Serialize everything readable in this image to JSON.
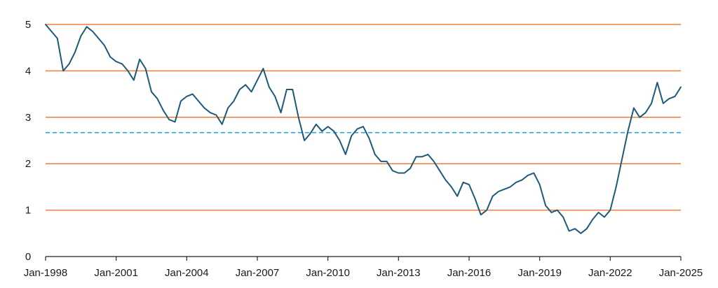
{
  "chart_data": {
    "type": "line",
    "title": "",
    "xlabel": "",
    "ylabel": "",
    "ylim": [
      0,
      5
    ],
    "xlim": [
      "1998-01",
      "2025-01"
    ],
    "grid": true,
    "colors": {
      "line": "#1d5a7a",
      "gridline": "#f07c3a",
      "reference": "#2aa7df",
      "axis": "#222222"
    },
    "y_ticks": [
      "0",
      "1",
      "2",
      "3",
      "4",
      "5"
    ],
    "x_ticks": [
      "Jan-1998",
      "Jan-2001",
      "Jan-2004",
      "Jan-2007",
      "Jan-2010",
      "Jan-2013",
      "Jan-2016",
      "Jan-2019",
      "Jan-2022",
      "Jan-2025"
    ],
    "reference_line": {
      "value": 2.67,
      "style": "dashed"
    },
    "series": [
      {
        "x": [
          "1998-01",
          "1998-04",
          "1998-07",
          "1998-10",
          "1999-01",
          "1999-04",
          "1999-07",
          "1999-10",
          "2000-01",
          "2000-04",
          "2000-07",
          "2000-10",
          "2001-01",
          "2001-04",
          "2001-07",
          "2001-10",
          "2002-01",
          "2002-04",
          "2002-07",
          "2002-10",
          "2003-01",
          "2003-04",
          "2003-07",
          "2003-10",
          "2004-01",
          "2004-04",
          "2004-07",
          "2004-10",
          "2005-01",
          "2005-04",
          "2005-07",
          "2005-10",
          "2006-01",
          "2006-04",
          "2006-07",
          "2006-10",
          "2007-01",
          "2007-04",
          "2007-07",
          "2007-10",
          "2008-01",
          "2008-04",
          "2008-07",
          "2008-10",
          "2009-01",
          "2009-04",
          "2009-07",
          "2009-10",
          "2010-01",
          "2010-04",
          "2010-07",
          "2010-10",
          "2011-01",
          "2011-04",
          "2011-07",
          "2011-10",
          "2012-01",
          "2012-04",
          "2012-07",
          "2012-10",
          "2013-01",
          "2013-04",
          "2013-07",
          "2013-10",
          "2014-01",
          "2014-04",
          "2014-07",
          "2014-10",
          "2015-01",
          "2015-04",
          "2015-07",
          "2015-10",
          "2016-01",
          "2016-04",
          "2016-07",
          "2016-10",
          "2017-01",
          "2017-04",
          "2017-07",
          "2017-10",
          "2018-01",
          "2018-04",
          "2018-07",
          "2018-10",
          "2019-01",
          "2019-04",
          "2019-07",
          "2019-10",
          "2020-01",
          "2020-04",
          "2020-07",
          "2020-10",
          "2021-01",
          "2021-04",
          "2021-07",
          "2021-10",
          "2022-01",
          "2022-04",
          "2022-07",
          "2022-10",
          "2023-01",
          "2023-04",
          "2023-07",
          "2023-10",
          "2024-01",
          "2024-04",
          "2024-07",
          "2024-10",
          "2025-01"
        ],
        "values": [
          5.0,
          4.85,
          4.7,
          4.0,
          4.15,
          4.4,
          4.75,
          4.95,
          4.85,
          4.7,
          4.55,
          4.3,
          4.2,
          4.15,
          4.0,
          3.8,
          4.25,
          4.05,
          3.55,
          3.4,
          3.15,
          2.95,
          2.9,
          3.35,
          3.45,
          3.5,
          3.35,
          3.2,
          3.1,
          3.05,
          2.85,
          3.2,
          3.35,
          3.6,
          3.7,
          3.55,
          3.8,
          4.05,
          3.65,
          3.45,
          3.1,
          3.6,
          3.6,
          3.0,
          2.5,
          2.65,
          2.85,
          2.7,
          2.8,
          2.7,
          2.5,
          2.2,
          2.6,
          2.75,
          2.8,
          2.55,
          2.2,
          2.05,
          2.05,
          1.85,
          1.8,
          1.8,
          1.9,
          2.15,
          2.15,
          2.2,
          2.05,
          1.85,
          1.65,
          1.5,
          1.3,
          1.6,
          1.55,
          1.25,
          0.9,
          1.0,
          1.3,
          1.4,
          1.45,
          1.5,
          1.6,
          1.65,
          1.75,
          1.8,
          1.55,
          1.1,
          0.95,
          1.0,
          0.85,
          0.55,
          0.6,
          0.5,
          0.6,
          0.8,
          0.95,
          0.85,
          1.0,
          1.5,
          2.1,
          2.7,
          3.2,
          3.0,
          3.1,
          3.3,
          3.75,
          3.3,
          3.4,
          3.45,
          3.65
        ]
      }
    ]
  }
}
